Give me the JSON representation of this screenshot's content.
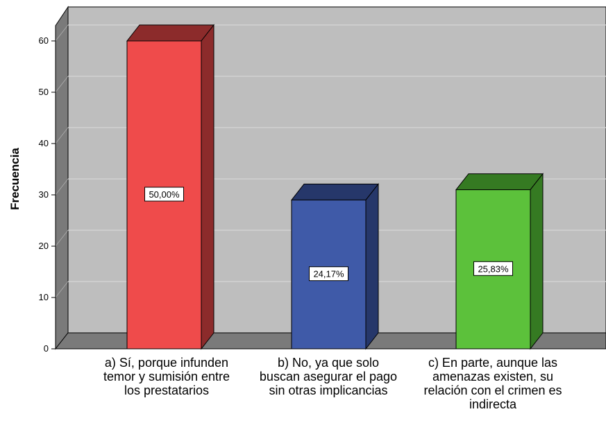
{
  "chart_data": {
    "type": "bar",
    "ylabel": "Frecuencia",
    "xlabel": "",
    "categories": [
      "a) Sí, porque infunden temor y sumisión entre los prestatarios",
      "b) No, ya que solo buscan asegurar el pago sin otras implicancias",
      "c) En parte, aunque las amenazas existen, su relación con el crimen es indirecta"
    ],
    "values": [
      60,
      29,
      31
    ],
    "data_labels": [
      "50,00%",
      "24,17%",
      "25,83%"
    ],
    "colors": [
      "#ef4b4b",
      "#3f5aa8",
      "#5cc13b"
    ],
    "side_colors": [
      "#8c2b2b",
      "#26376a",
      "#357a22"
    ],
    "ylim": [
      0,
      65
    ],
    "yticks": [
      0,
      10,
      20,
      30,
      40,
      50,
      60
    ],
    "grid": true,
    "style": "3d"
  }
}
